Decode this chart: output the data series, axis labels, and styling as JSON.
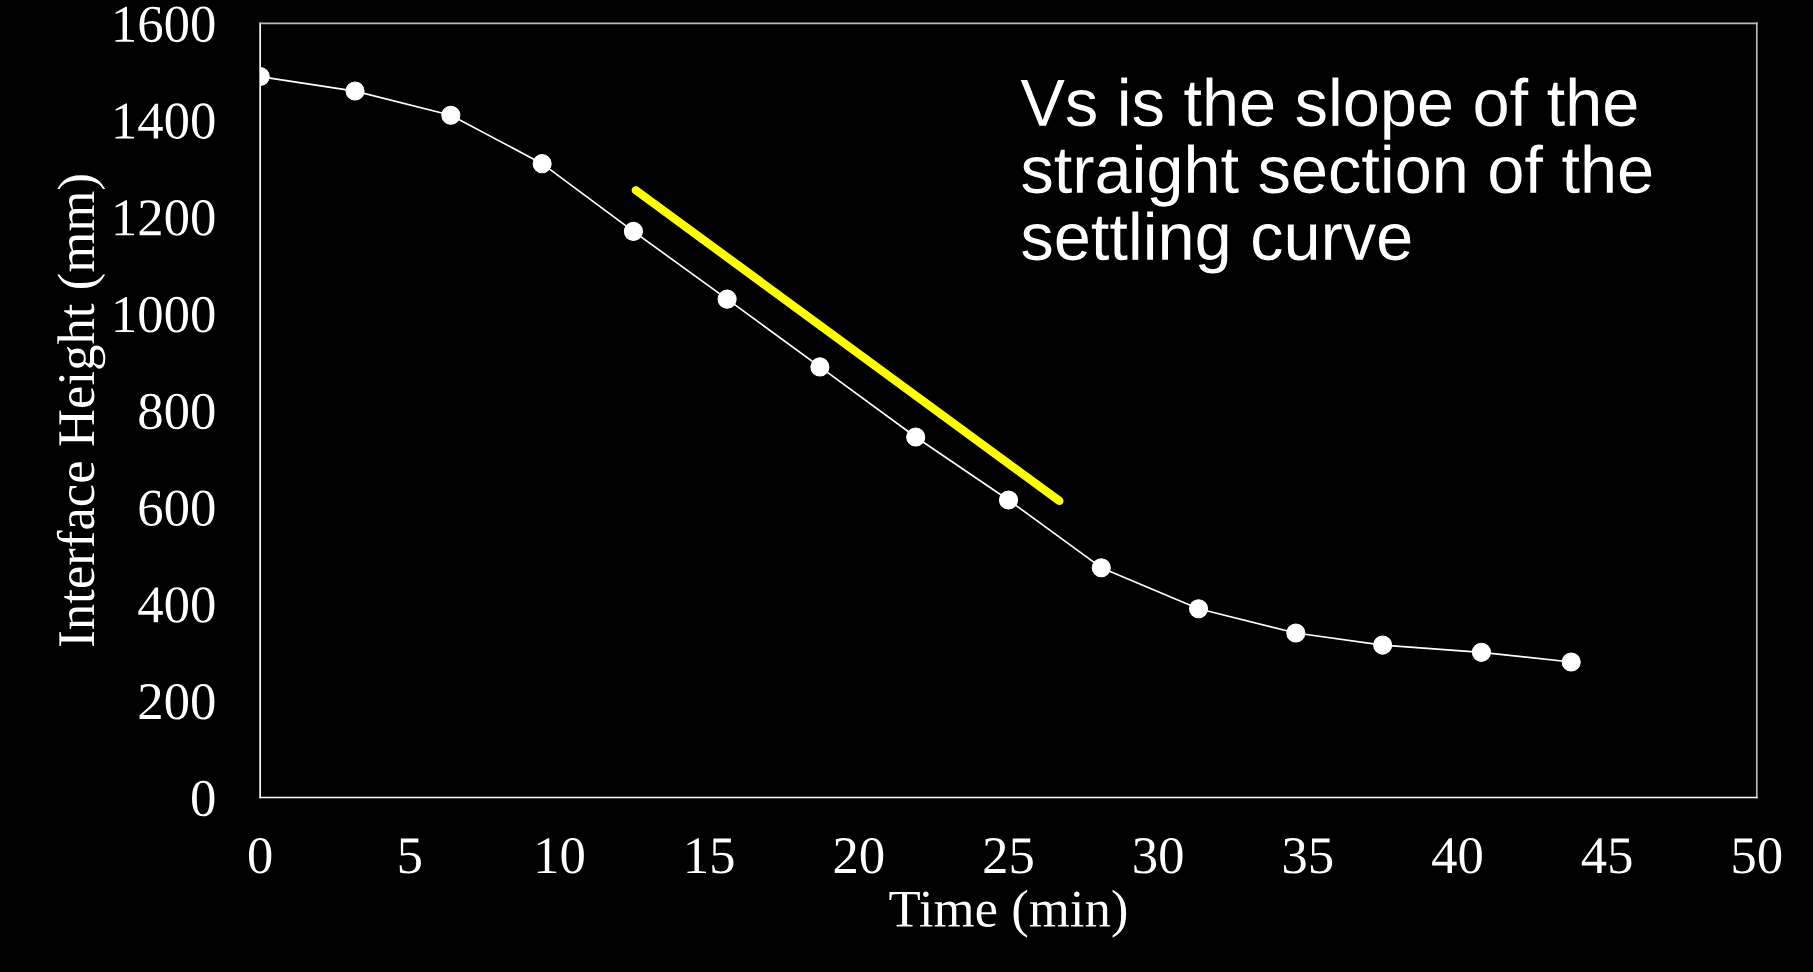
{
  "chart_data": {
    "type": "line",
    "xlabel": "Time (min)",
    "ylabel": "Interface Height (mm)",
    "x": [
      0,
      3.17,
      6.37,
      9.42,
      12.47,
      15.6,
      18.7,
      21.9,
      25.0,
      28.1,
      31.35,
      34.6,
      37.5,
      40.8,
      43.8
    ],
    "series": [
      {
        "color": "#ffffff",
        "values": [
          1490,
          1460,
          1410,
          1310,
          1170,
          1030,
          890,
          745,
          615,
          475,
          390,
          340,
          315,
          300,
          280
        ],
        "marker": "circle"
      },
      {
        "type": "line",
        "color": "#ffff00",
        "x": [
          12.55,
          26.7
        ],
        "values": [
          1255,
          613
        ],
        "marker": "none"
      }
    ],
    "xlim": [
      0,
      50
    ],
    "xticks": [
      0,
      5,
      10,
      15,
      20,
      25,
      30,
      35,
      40,
      45,
      50
    ],
    "ylim": [
      0,
      1600
    ],
    "yticks": [
      0,
      200,
      400,
      600,
      800,
      1000,
      1200,
      1400,
      1600
    ],
    "grid": false,
    "legend": false,
    "annotations": [
      "Vs is the slope of the straight section of the settling curve"
    ]
  }
}
